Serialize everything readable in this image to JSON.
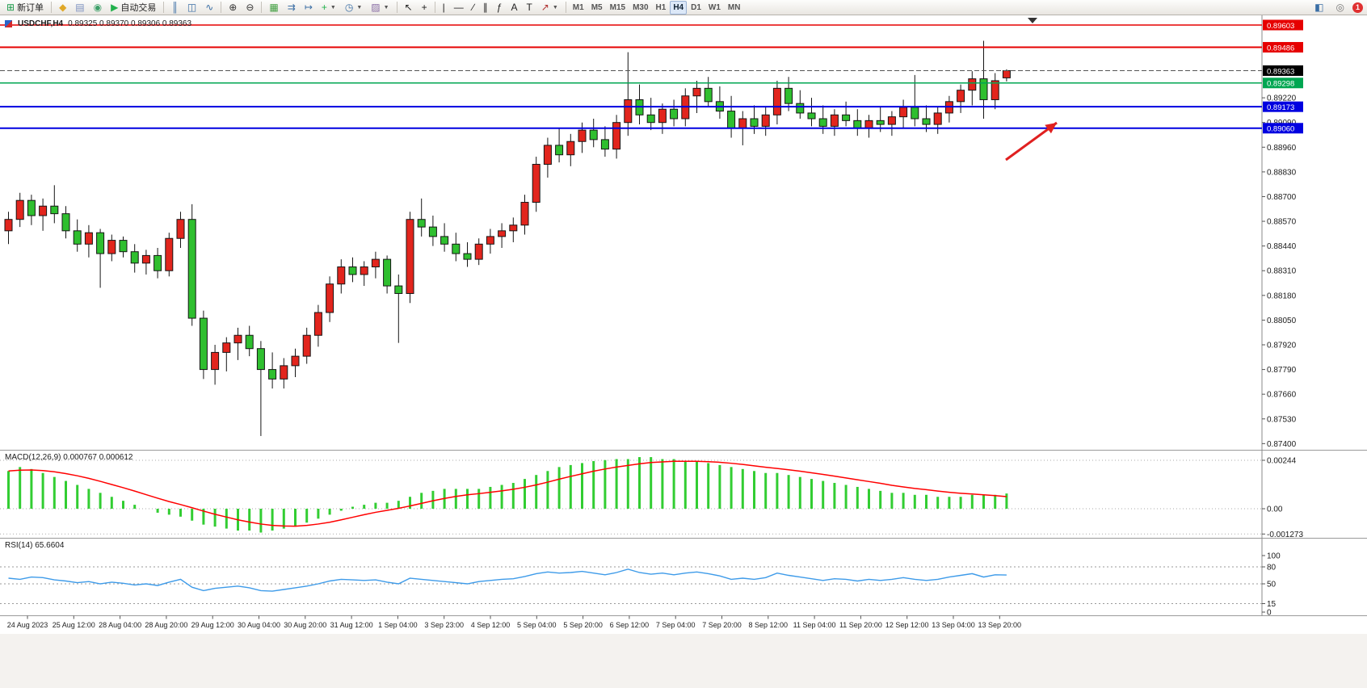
{
  "toolbar": {
    "active_timeframe": "H4",
    "notification_count": "1",
    "items": [
      {
        "type": "button",
        "name": "new-order-button",
        "icon": "new-order-icon",
        "glyph": "⊞",
        "glyph_color": "#1a9a4a",
        "label": "新订单"
      },
      {
        "type": "sep"
      },
      {
        "type": "icon",
        "name": "alerts-icon",
        "glyph": "◆",
        "color": "#e0a828"
      },
      {
        "type": "icon",
        "name": "mailbox-icon",
        "glyph": "▤",
        "color": "#7a8fc0"
      },
      {
        "type": "icon",
        "name": "market-watch-icon",
        "glyph": "◉",
        "color": "#3fa06a"
      },
      {
        "type": "button",
        "name": "auto-trading-button",
        "icon": "auto-trading-icon",
        "glyph": "▶",
        "glyph_color": "#22b14c",
        "label": "自动交易"
      },
      {
        "type": "sep"
      },
      {
        "type": "icon",
        "name": "bar-chart-type-icon",
        "glyph": "║",
        "color": "#3a6ea5"
      },
      {
        "type": "icon",
        "name": "candlestick-chart-type-icon",
        "glyph": "◫",
        "color": "#3a6ea5"
      },
      {
        "type": "icon",
        "name": "line-chart-type-icon",
        "glyph": "∿",
        "color": "#3a6ea5"
      },
      {
        "type": "sep"
      },
      {
        "type": "icon",
        "name": "zoom-in-icon",
        "glyph": "⊕",
        "color": "#333333"
      },
      {
        "type": "icon",
        "name": "zoom-out-icon",
        "glyph": "⊖",
        "color": "#333333"
      },
      {
        "type": "sep"
      },
      {
        "type": "icon",
        "name": "tile-windows-icon",
        "glyph": "▦",
        "color": "#3f9e3f"
      },
      {
        "type": "icon",
        "name": "auto-scroll-icon",
        "glyph": "⇉",
        "color": "#3a6ea5"
      },
      {
        "type": "icon",
        "name": "chart-shift-icon",
        "glyph": "↦",
        "color": "#3a6ea5"
      },
      {
        "type": "dropdown",
        "name": "indicators-button",
        "icon": "indicators-add-icon",
        "glyph": "+",
        "color": "#22b14c"
      },
      {
        "type": "dropdown",
        "name": "periods-button",
        "icon": "clock-icon",
        "glyph": "◷",
        "color": "#3a6ea5"
      },
      {
        "type": "dropdown",
        "name": "templates-button",
        "icon": "template-icon",
        "glyph": "▨",
        "color": "#8a6ea5"
      },
      {
        "type": "sep"
      },
      {
        "type": "icon",
        "name": "cursor-icon",
        "glyph": "↖",
        "color": "#222222"
      },
      {
        "type": "icon",
        "name": "crosshair-icon",
        "glyph": "+",
        "color": "#222222"
      },
      {
        "type": "sep"
      },
      {
        "type": "icon",
        "name": "vertical-line-icon",
        "glyph": "|",
        "color": "#222222"
      },
      {
        "type": "icon",
        "name": "horizontal-line-icon",
        "glyph": "—",
        "color": "#222222"
      },
      {
        "type": "icon",
        "name": "trendline-icon",
        "glyph": "∕",
        "color": "#222222"
      },
      {
        "type": "icon",
        "name": "equidistant-channel-icon",
        "glyph": "∥",
        "color": "#222222"
      },
      {
        "type": "icon",
        "name": "fibonacci-icon",
        "glyph": "ƒ",
        "color": "#222222"
      },
      {
        "type": "icon",
        "name": "text-icon",
        "glyph": "A",
        "color": "#222222"
      },
      {
        "type": "icon",
        "name": "text-label-icon",
        "glyph": "T",
        "color": "#222222"
      },
      {
        "type": "dropdown",
        "name": "arrows-tool-button",
        "icon": "arrow-tool-icon",
        "glyph": "↗",
        "color": "#b03030"
      },
      {
        "type": "sep"
      },
      {
        "type": "tf",
        "label": "M1"
      },
      {
        "type": "tf",
        "label": "M5"
      },
      {
        "type": "tf",
        "label": "M15"
      },
      {
        "type": "tf",
        "label": "M30"
      },
      {
        "type": "tf",
        "label": "H1"
      },
      {
        "type": "tf",
        "label": "H4"
      },
      {
        "type": "tf",
        "label": "D1"
      },
      {
        "type": "tf",
        "label": "W1"
      },
      {
        "type": "tf",
        "label": "MN"
      }
    ],
    "right_items": [
      {
        "type": "icon",
        "name": "community-icon",
        "glyph": "◧",
        "color": "#3a6ea5"
      },
      {
        "type": "icon",
        "name": "search-icon",
        "glyph": "◎",
        "color": "#777777"
      },
      {
        "type": "badge",
        "name": "notification-badge",
        "label": "1"
      }
    ]
  },
  "chart": {
    "title": "USDCHF,H4",
    "ohlc_text": "0.89325 0.89370 0.89306 0.89363"
  },
  "chart_data": {
    "type": "candlestick",
    "symbol": "USDCHF",
    "timeframe": "H4",
    "current": {
      "open": 0.89325,
      "high": 0.8937,
      "low": 0.89306,
      "close": 0.89363
    },
    "colors": {
      "bull": "#e2251d",
      "bear": "#2fbf2f",
      "wick": "#151515",
      "macd_hist": "#32cd32",
      "macd_signal": "#ff0000",
      "rsi_line": "#3e9be9",
      "line_red": "#e60000",
      "line_green": "#00a651",
      "line_blue": "#0000e0",
      "current_label_bg": "#000000"
    },
    "hlines": [
      {
        "price": 0.89603,
        "color": "#e60000",
        "width": 1.5
      },
      {
        "price": 0.89486,
        "color": "#e60000",
        "width": 2
      },
      {
        "price": 0.89363,
        "color": "#555555",
        "width": 1,
        "style": "current",
        "label_bg": "#000000"
      },
      {
        "price": 0.89298,
        "color": "#00a651",
        "width": 1.5
      },
      {
        "price": 0.89173,
        "color": "#0000e0",
        "width": 2
      },
      {
        "price": 0.8906,
        "color": "#0000e0",
        "width": 2
      }
    ],
    "price_axis_ticks": [
      0.8922,
      0.8909,
      0.8896,
      0.8883,
      0.887,
      0.8857,
      0.8844,
      0.8831,
      0.8818,
      0.8805,
      0.8792,
      0.8779,
      0.8766,
      0.8753,
      0.874
    ],
    "time_labels": [
      "24 Aug 2023",
      "25 Aug 12:00",
      "28 Aug 04:00",
      "28 Aug 20:00",
      "29 Aug 12:00",
      "30 Aug 04:00",
      "30 Aug 20:00",
      "31 Aug 12:00",
      "1 Sep 04:00",
      "3 Sep 23:00",
      "4 Sep 12:00",
      "5 Sep 04:00",
      "5 Sep 20:00",
      "6 Sep 12:00",
      "7 Sep 04:00",
      "7 Sep 20:00",
      "8 Sep 12:00",
      "11 Sep 04:00",
      "11 Sep 20:00",
      "12 Sep 12:00",
      "13 Sep 04:00",
      "13 Sep 20:00"
    ],
    "candles": [
      [
        0.8852,
        0.8862,
        0.8845,
        0.8858
      ],
      [
        0.8858,
        0.8872,
        0.8854,
        0.8868
      ],
      [
        0.8868,
        0.8871,
        0.8855,
        0.886
      ],
      [
        0.886,
        0.8869,
        0.8852,
        0.8865
      ],
      [
        0.8865,
        0.8876,
        0.8856,
        0.8861
      ],
      [
        0.8861,
        0.8865,
        0.8848,
        0.8852
      ],
      [
        0.8852,
        0.8858,
        0.8841,
        0.8845
      ],
      [
        0.8845,
        0.8855,
        0.8838,
        0.8851
      ],
      [
        0.8851,
        0.8853,
        0.8822,
        0.884
      ],
      [
        0.884,
        0.885,
        0.8836,
        0.8847
      ],
      [
        0.8847,
        0.8849,
        0.8838,
        0.8841
      ],
      [
        0.8841,
        0.8845,
        0.883,
        0.8835
      ],
      [
        0.8835,
        0.8842,
        0.8829,
        0.8839
      ],
      [
        0.8839,
        0.8843,
        0.8827,
        0.8831
      ],
      [
        0.8831,
        0.8851,
        0.8828,
        0.8848
      ],
      [
        0.8848,
        0.8862,
        0.8843,
        0.8858
      ],
      [
        0.8858,
        0.8866,
        0.8802,
        0.8806
      ],
      [
        0.8806,
        0.881,
        0.8774,
        0.8779
      ],
      [
        0.8779,
        0.8792,
        0.8771,
        0.8788
      ],
      [
        0.8788,
        0.8796,
        0.8778,
        0.8793
      ],
      [
        0.8793,
        0.8801,
        0.8784,
        0.8797
      ],
      [
        0.8797,
        0.8802,
        0.8786,
        0.879
      ],
      [
        0.879,
        0.8794,
        0.8744,
        0.8779
      ],
      [
        0.8779,
        0.8788,
        0.8769,
        0.8774
      ],
      [
        0.8774,
        0.8785,
        0.8769,
        0.8781
      ],
      [
        0.8781,
        0.879,
        0.8775,
        0.8786
      ],
      [
        0.8786,
        0.8801,
        0.8782,
        0.8797
      ],
      [
        0.8797,
        0.8813,
        0.8791,
        0.8809
      ],
      [
        0.8809,
        0.8828,
        0.8804,
        0.8824
      ],
      [
        0.8824,
        0.8837,
        0.8819,
        0.8833
      ],
      [
        0.8833,
        0.8838,
        0.8825,
        0.8829
      ],
      [
        0.8829,
        0.8836,
        0.8823,
        0.8833
      ],
      [
        0.8833,
        0.8841,
        0.8827,
        0.8837
      ],
      [
        0.8837,
        0.8839,
        0.8819,
        0.8823
      ],
      [
        0.8823,
        0.8829,
        0.8793,
        0.8819
      ],
      [
        0.8819,
        0.8862,
        0.8814,
        0.8858
      ],
      [
        0.8858,
        0.8869,
        0.8849,
        0.8854
      ],
      [
        0.8854,
        0.886,
        0.8844,
        0.8849
      ],
      [
        0.8849,
        0.8856,
        0.8841,
        0.8845
      ],
      [
        0.8845,
        0.8851,
        0.8836,
        0.884
      ],
      [
        0.884,
        0.8846,
        0.8833,
        0.8837
      ],
      [
        0.8837,
        0.8848,
        0.8834,
        0.8845
      ],
      [
        0.8845,
        0.8853,
        0.884,
        0.8849
      ],
      [
        0.8849,
        0.8856,
        0.8843,
        0.8852
      ],
      [
        0.8852,
        0.8859,
        0.8846,
        0.8855
      ],
      [
        0.8855,
        0.8871,
        0.885,
        0.8867
      ],
      [
        0.8867,
        0.8891,
        0.8862,
        0.8887
      ],
      [
        0.8887,
        0.8901,
        0.888,
        0.8897
      ],
      [
        0.8897,
        0.8906,
        0.8888,
        0.8892
      ],
      [
        0.8892,
        0.8903,
        0.8886,
        0.8899
      ],
      [
        0.8899,
        0.8909,
        0.8893,
        0.8905
      ],
      [
        0.8905,
        0.8911,
        0.8896,
        0.89
      ],
      [
        0.89,
        0.8907,
        0.8891,
        0.8895
      ],
      [
        0.8895,
        0.8913,
        0.889,
        0.8909
      ],
      [
        0.8909,
        0.8946,
        0.8902,
        0.8921
      ],
      [
        0.8921,
        0.8929,
        0.8908,
        0.8913
      ],
      [
        0.8913,
        0.8922,
        0.8905,
        0.8909
      ],
      [
        0.8909,
        0.8919,
        0.8903,
        0.8916
      ],
      [
        0.8916,
        0.8921,
        0.8907,
        0.8911
      ],
      [
        0.8911,
        0.8927,
        0.8907,
        0.8923
      ],
      [
        0.8923,
        0.8931,
        0.8914,
        0.8927
      ],
      [
        0.8927,
        0.8933,
        0.8917,
        0.892
      ],
      [
        0.892,
        0.8928,
        0.8911,
        0.8915
      ],
      [
        0.8915,
        0.8923,
        0.8901,
        0.8906
      ],
      [
        0.8906,
        0.8915,
        0.8897,
        0.8911
      ],
      [
        0.8911,
        0.8918,
        0.8903,
        0.8907
      ],
      [
        0.8907,
        0.8917,
        0.8902,
        0.8913
      ],
      [
        0.8913,
        0.8931,
        0.8908,
        0.8927
      ],
      [
        0.8927,
        0.8933,
        0.8915,
        0.8919
      ],
      [
        0.8919,
        0.8926,
        0.8911,
        0.8914
      ],
      [
        0.8914,
        0.8922,
        0.8907,
        0.8911
      ],
      [
        0.8911,
        0.8918,
        0.8903,
        0.8907
      ],
      [
        0.8907,
        0.8916,
        0.8902,
        0.8913
      ],
      [
        0.8913,
        0.892,
        0.8907,
        0.891
      ],
      [
        0.891,
        0.8916,
        0.8902,
        0.8906
      ],
      [
        0.8906,
        0.8913,
        0.8901,
        0.891
      ],
      [
        0.891,
        0.8917,
        0.8904,
        0.8908
      ],
      [
        0.8908,
        0.8915,
        0.8902,
        0.8912
      ],
      [
        0.8912,
        0.8921,
        0.8906,
        0.8917
      ],
      [
        0.8917,
        0.8934,
        0.8907,
        0.8911
      ],
      [
        0.8911,
        0.8918,
        0.8904,
        0.8908
      ],
      [
        0.8908,
        0.8917,
        0.8903,
        0.8914
      ],
      [
        0.8914,
        0.8923,
        0.8909,
        0.892
      ],
      [
        0.892,
        0.8929,
        0.8914,
        0.8926
      ],
      [
        0.8926,
        0.8936,
        0.8918,
        0.8932
      ],
      [
        0.8932,
        0.8952,
        0.8911,
        0.8921
      ],
      [
        0.8921,
        0.8935,
        0.8916,
        0.8931
      ],
      [
        0.89325,
        0.8937,
        0.89306,
        0.89363
      ]
    ],
    "macd": {
      "label": "MACD(12,26,9) 0.000767 0.000612",
      "params": "12,26,9",
      "main_value": 0.000767,
      "signal_value": 0.000612,
      "axis": [
        {
          "v": 0.00244,
          "label": "0.00244"
        },
        {
          "v": 0,
          "label": "0.00"
        },
        {
          "v": -0.001273,
          "label": "-0.001273"
        }
      ],
      "histogram": [
        0.0019,
        0.0021,
        0.002,
        0.0018,
        0.0016,
        0.0014,
        0.0012,
        0.001,
        0.0008,
        0.0006,
        0.0004,
        0.0002,
        0.0,
        -0.0002,
        -0.0003,
        -0.0004,
        -0.0006,
        -0.0008,
        -0.0009,
        -0.001,
        -0.0011,
        -0.0011,
        -0.0012,
        -0.0011,
        -0.001,
        -0.0009,
        -0.0007,
        -0.0005,
        -0.0003,
        -0.0001,
        0.0001,
        0.0002,
        0.0003,
        0.0003,
        0.0004,
        0.0006,
        0.0008,
        0.0009,
        0.001,
        0.001,
        0.001,
        0.001,
        0.0011,
        0.0012,
        0.0013,
        0.0015,
        0.0017,
        0.0019,
        0.0021,
        0.0022,
        0.0023,
        0.0024,
        0.00245,
        0.0025,
        0.0025,
        0.0026,
        0.0026,
        0.0025,
        0.0025,
        0.0024,
        0.0024,
        0.0023,
        0.0022,
        0.0021,
        0.002,
        0.0019,
        0.0018,
        0.0018,
        0.0017,
        0.0016,
        0.0015,
        0.0014,
        0.0013,
        0.0012,
        0.0011,
        0.001,
        0.0009,
        0.0008,
        0.0008,
        0.0007,
        0.0007,
        0.0006,
        0.0006,
        0.0006,
        0.0007,
        0.0007,
        0.0007,
        0.000767
      ],
      "signal": [
        0.0019,
        0.00194,
        0.00195,
        0.00192,
        0.00186,
        0.00177,
        0.00166,
        0.00153,
        0.00138,
        0.00122,
        0.00106,
        0.00089,
        0.00071,
        0.00053,
        0.00036,
        0.00021,
        5e-05,
        -0.00012,
        -0.00028,
        -0.00042,
        -0.00056,
        -0.00067,
        -0.00077,
        -0.00084,
        -0.00087,
        -0.00088,
        -0.00084,
        -0.00077,
        -0.00068,
        -0.00056,
        -0.00043,
        -0.0003,
        -0.00018,
        -8e-05,
        2e-05,
        0.00014,
        0.00027,
        0.0004,
        0.00052,
        0.00062,
        0.0007,
        0.00076,
        0.00083,
        0.0009,
        0.00098,
        0.00108,
        0.0012,
        0.00134,
        0.00149,
        0.00163,
        0.00176,
        0.00189,
        0.002,
        0.0021,
        0.00218,
        0.00226,
        0.00233,
        0.00236,
        0.00239,
        0.00239,
        0.00239,
        0.00237,
        0.00234,
        0.00229,
        0.00223,
        0.00216,
        0.00209,
        0.00203,
        0.00196,
        0.00189,
        0.00181,
        0.00173,
        0.00164,
        0.00155,
        0.00146,
        0.00137,
        0.00128,
        0.00118,
        0.0011,
        0.00102,
        0.00096,
        0.00089,
        0.00083,
        0.00078,
        0.00074,
        0.0007,
        0.00066,
        0.000612
      ]
    },
    "rsi": {
      "label": "RSI(14) 65.6604",
      "value": 65.6604,
      "axis": [
        100,
        80,
        50,
        15,
        0
      ],
      "levels": [
        80,
        50,
        15
      ],
      "series": [
        60,
        58,
        62,
        61,
        57,
        55,
        52,
        54,
        50,
        53,
        51,
        48,
        50,
        47,
        53,
        58,
        44,
        38,
        42,
        44,
        46,
        43,
        38,
        37,
        40,
        43,
        46,
        50,
        55,
        58,
        57,
        56,
        57,
        53,
        50,
        60,
        58,
        56,
        54,
        52,
        50,
        54,
        56,
        58,
        59,
        63,
        68,
        71,
        69,
        70,
        72,
        69,
        66,
        70,
        76,
        70,
        67,
        69,
        66,
        69,
        71,
        68,
        64,
        58,
        60,
        58,
        61,
        69,
        65,
        62,
        59,
        56,
        59,
        58,
        55,
        58,
        56,
        58,
        61,
        58,
        56,
        58,
        62,
        65,
        68,
        62,
        66,
        65.66
      ]
    },
    "arrow": {
      "color": "#e02020",
      "from": [
        1245,
        198
      ],
      "to": [
        1308,
        152
      ]
    }
  }
}
